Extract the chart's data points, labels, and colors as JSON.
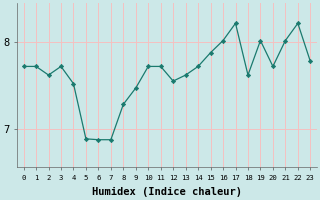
{
  "x": [
    0,
    1,
    2,
    3,
    4,
    5,
    6,
    7,
    8,
    9,
    10,
    11,
    12,
    13,
    14,
    15,
    16,
    17,
    18,
    19,
    20,
    21,
    22,
    23
  ],
  "y": [
    7.72,
    7.72,
    7.62,
    7.72,
    7.52,
    6.88,
    6.87,
    6.87,
    7.28,
    7.47,
    7.72,
    7.72,
    7.55,
    7.62,
    7.72,
    7.88,
    8.02,
    8.22,
    7.62,
    8.02,
    7.72,
    8.02,
    8.22,
    7.78
  ],
  "xlabel": "Humidex (Indice chaleur)",
  "line_color": "#1a7a6e",
  "marker": "D",
  "marker_size": 2.2,
  "bg_color": "#cce8e8",
  "grid_color": "#f0c0c0",
  "yticks": [
    7,
    8
  ],
  "ylim": [
    6.55,
    8.45
  ],
  "xlim": [
    -0.5,
    23.5
  ],
  "xlabel_fontsize": 7.5,
  "xtick_fontsize": 5.2,
  "ytick_fontsize": 7.5
}
